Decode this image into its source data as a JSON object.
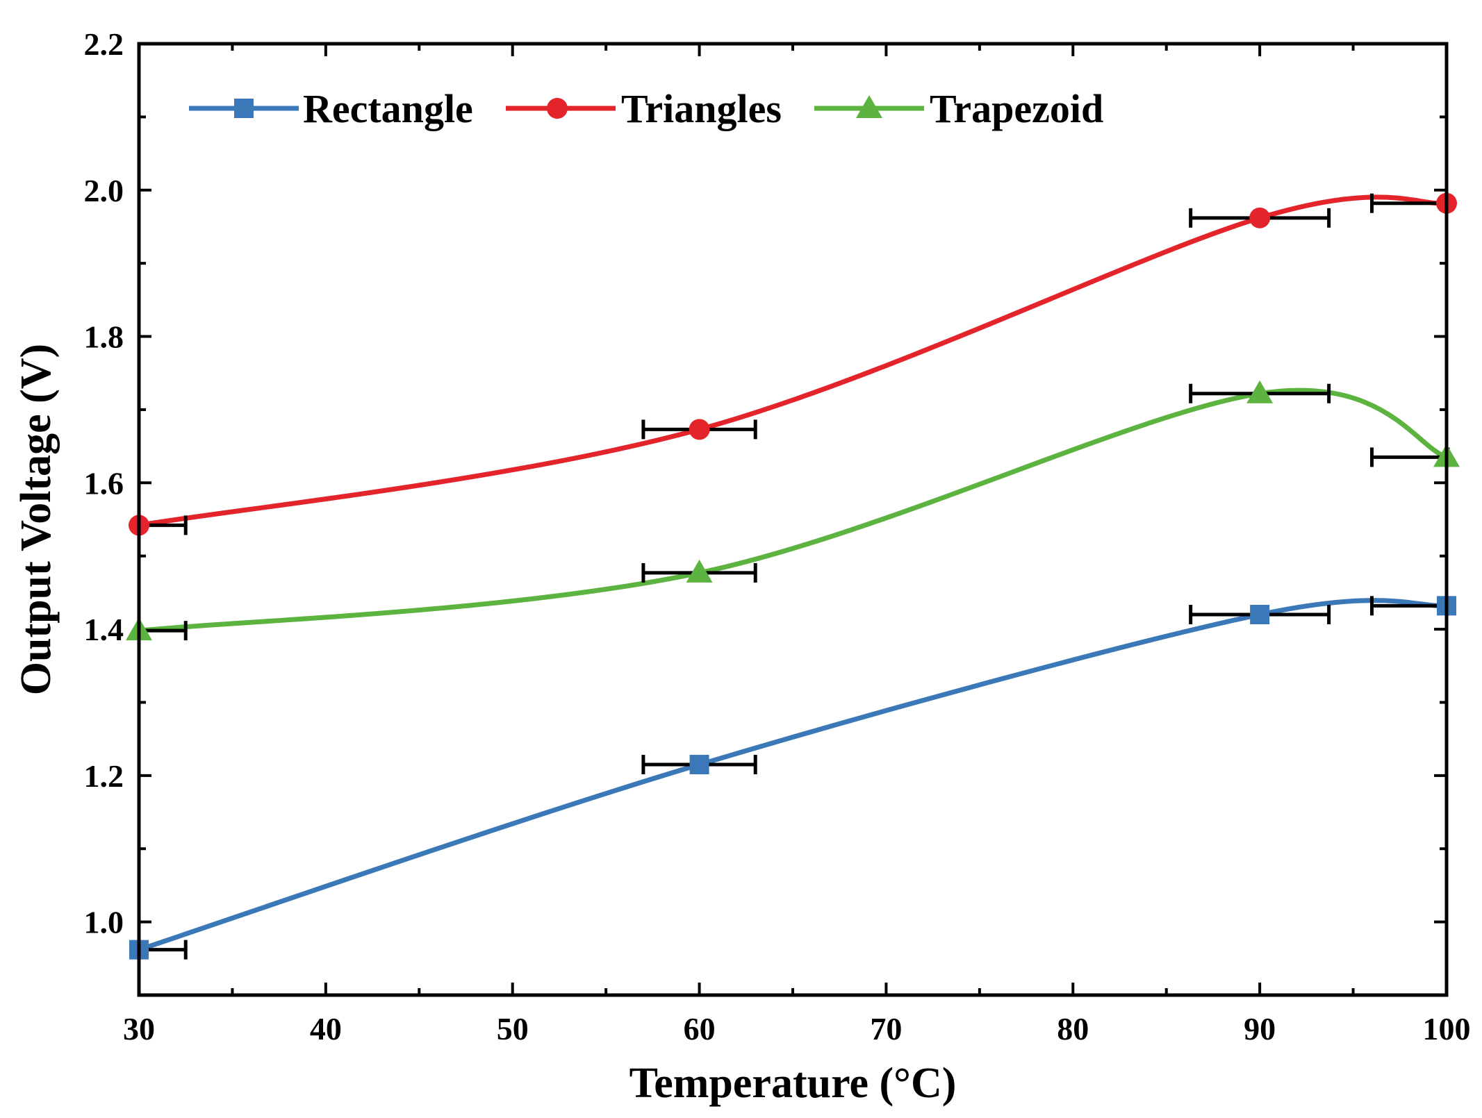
{
  "chart_data": {
    "type": "line",
    "title": "",
    "xlabel": "Temperature (°C)",
    "ylabel": "Output Voltage (V)",
    "xlim": [
      30,
      100
    ],
    "ylim": [
      0.9,
      2.2
    ],
    "xticks": [
      30,
      40,
      50,
      60,
      70,
      80,
      90,
      100
    ],
    "xtick_labels": [
      "30",
      "40",
      "50",
      "60",
      "70",
      "80",
      "90",
      "100"
    ],
    "yticks": [
      1.0,
      1.2,
      1.4,
      1.6,
      1.8,
      2.0,
      2.2
    ],
    "ytick_labels": [
      "1.0",
      "1.2",
      "1.4",
      "1.6",
      "1.8",
      "2.0",
      "2.2"
    ],
    "x": [
      30,
      60,
      90,
      100
    ],
    "x_error": [
      2.5,
      3,
      3.7,
      4
    ],
    "series": [
      {
        "name": "Rectangle",
        "color": "#3a78b8",
        "marker": "square",
        "values": [
          0.962,
          1.215,
          1.42,
          1.432
        ]
      },
      {
        "name": "Triangles",
        "color": "#e3242b",
        "marker": "circle",
        "values": [
          1.542,
          1.673,
          1.962,
          1.982
        ]
      },
      {
        "name": "Trapezoid",
        "color": "#5db33f",
        "marker": "triangle",
        "values": [
          1.398,
          1.477,
          1.722,
          1.635
        ]
      }
    ],
    "legend_position": "top-left",
    "grid": false
  }
}
